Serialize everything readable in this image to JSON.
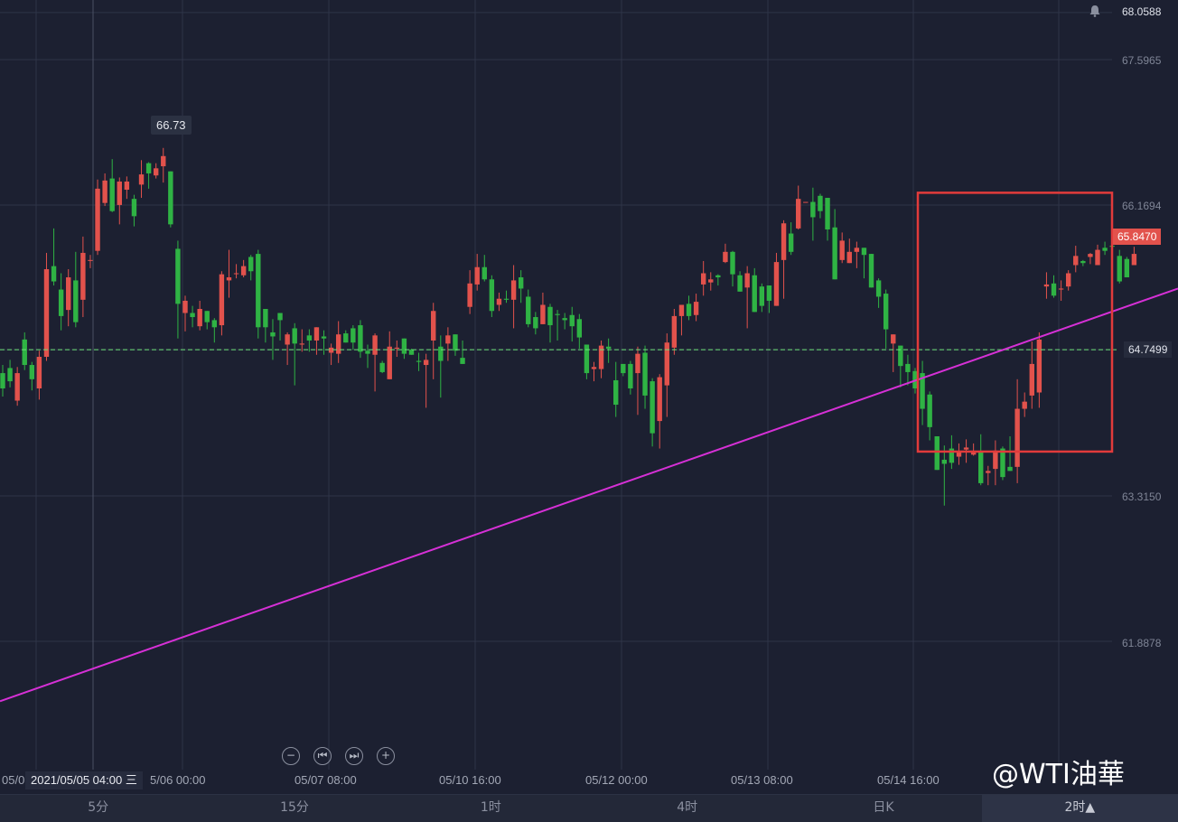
{
  "chart_data": {
    "type": "candlestick",
    "symbol_context": "WTI crude oil",
    "y_ticks": [
      "68.0588",
      "67.5965",
      "66.1694",
      "64.7499",
      "63.3150",
      "61.8878"
    ],
    "current_price": "65.8470",
    "reference_line_price": "64.7499",
    "reference_line_price_value": 64.7499,
    "peak_label": "66.73",
    "peak_value": 66.73,
    "x_tick_labels": [
      "05/0",
      "5/06 00:00",
      "05/07 08:00",
      "05/10 16:00",
      "05/12 00:00",
      "05/13 08:00",
      "05/14 16:00"
    ],
    "crosshair_time": "2021/05/05 04:00 三",
    "trendline": {
      "from": 61.3,
      "to": 65.35
    },
    "highlight_box": {
      "price_top": 66.29,
      "price_bottom": 63.75
    },
    "candles": [
      [
        64.52,
        64.37,
        64.6,
        64.29
      ],
      [
        64.57,
        64.44,
        64.65,
        64.38
      ],
      [
        64.25,
        64.52,
        64.58,
        64.2
      ],
      [
        64.85,
        64.6,
        64.92,
        64.55
      ],
      [
        64.6,
        64.46,
        64.63,
        64.35
      ],
      [
        64.37,
        64.68,
        64.74,
        64.26
      ],
      [
        64.68,
        65.54,
        65.7,
        64.64
      ],
      [
        65.57,
        65.42,
        65.94,
        65.38
      ],
      [
        65.34,
        65.08,
        65.5,
        64.94
      ],
      [
        65.14,
        65.46,
        65.54,
        64.98
      ],
      [
        65.43,
        65.02,
        65.71,
        64.97
      ],
      [
        65.24,
        65.7,
        65.86,
        65.07
      ],
      [
        65.63,
        65.63,
        65.68,
        65.55
      ],
      [
        65.72,
        66.33,
        66.42,
        65.68
      ],
      [
        66.19,
        66.41,
        66.48,
        66.16
      ],
      [
        66.43,
        66.11,
        66.62,
        66.1
      ],
      [
        66.17,
        66.4,
        66.44,
        65.98
      ],
      [
        66.32,
        66.4,
        66.45,
        66.23
      ],
      [
        66.23,
        66.06,
        66.27,
        65.96
      ],
      [
        66.37,
        66.47,
        66.61,
        66.24
      ],
      [
        66.58,
        66.48,
        66.59,
        66.33
      ],
      [
        66.46,
        66.53,
        66.58,
        66.43
      ],
      [
        66.55,
        66.65,
        66.73,
        66.39
      ],
      [
        66.5,
        65.98,
        66.46,
        65.95
      ],
      [
        65.74,
        65.2,
        65.82,
        64.86
      ],
      [
        65.11,
        65.23,
        65.28,
        64.93
      ],
      [
        65.11,
        65.07,
        65.18,
        64.97
      ],
      [
        64.98,
        65.15,
        65.23,
        64.94
      ],
      [
        65.13,
        65.02,
        65.12,
        64.95
      ],
      [
        65.04,
        64.97,
        65.06,
        64.82
      ],
      [
        64.99,
        65.49,
        65.52,
        64.89
      ],
      [
        65.43,
        65.46,
        65.73,
        65.26
      ],
      [
        65.5,
        65.5,
        65.59,
        65.45
      ],
      [
        65.48,
        65.57,
        65.63,
        65.46
      ],
      [
        65.66,
        65.52,
        65.68,
        65.43
      ],
      [
        65.69,
        64.97,
        65.73,
        64.86
      ],
      [
        65.15,
        64.97,
        64.99,
        64.82
      ],
      [
        64.92,
        64.88,
        65.05,
        64.65
      ],
      [
        65.11,
        65.04,
        64.97,
        64.84
      ],
      [
        64.8,
        64.9,
        64.92,
        64.6
      ],
      [
        64.96,
        64.81,
        65.01,
        64.4
      ],
      [
        64.8,
        64.81,
        64.95,
        64.73
      ],
      [
        64.89,
        64.84,
        64.95,
        64.73
      ],
      [
        64.84,
        64.97,
        64.85,
        64.7
      ],
      [
        64.88,
        64.86,
        64.94,
        64.7
      ],
      [
        64.72,
        64.77,
        64.81,
        64.6
      ],
      [
        64.71,
        64.9,
        65.03,
        64.62
      ],
      [
        64.91,
        64.82,
        64.94,
        64.84
      ],
      [
        64.96,
        64.82,
        64.99,
        64.75
      ],
      [
        64.99,
        64.73,
        65.04,
        64.67
      ],
      [
        64.74,
        64.71,
        64.8,
        64.57
      ],
      [
        64.7,
        64.89,
        64.91,
        64.34
      ],
      [
        64.62,
        64.53,
        64.64,
        64.52
      ],
      [
        64.46,
        64.78,
        64.93,
        64.52
      ],
      [
        64.76,
        64.77,
        64.84,
        64.68
      ],
      [
        64.86,
        64.71,
        64.84,
        64.66
      ],
      [
        64.75,
        64.7,
        64.76,
        64.7
      ],
      [
        64.64,
        64.63,
        64.72,
        64.54
      ],
      [
        64.6,
        64.65,
        64.71,
        64.18
      ],
      [
        64.84,
        65.13,
        65.21,
        64.46
      ],
      [
        64.78,
        64.64,
        64.89,
        64.28
      ],
      [
        64.81,
        64.89,
        64.97,
        64.64
      ],
      [
        64.9,
        64.74,
        64.83,
        64.69
      ],
      [
        64.67,
        64.61,
        64.84,
        64.65
      ],
      [
        65.17,
        65.4,
        65.53,
        65.1
      ],
      [
        65.39,
        65.56,
        65.69,
        65.33
      ],
      [
        65.56,
        65.44,
        65.68,
        65.42
      ],
      [
        65.44,
        65.13,
        65.48,
        65.07
      ],
      [
        65.19,
        65.25,
        65.31,
        65.13
      ],
      [
        65.25,
        65.24,
        65.33,
        65.21
      ],
      [
        65.24,
        65.43,
        65.58,
        64.96
      ],
      [
        65.46,
        65.35,
        65.53,
        65.21
      ],
      [
        65.27,
        65.0,
        65.34,
        64.97
      ],
      [
        65.07,
        64.96,
        65.12,
        64.9
      ],
      [
        65.0,
        65.19,
        65.31,
        65.01
      ],
      [
        65.17,
        64.99,
        65.2,
        64.82
      ],
      [
        65.1,
        65.09,
        65.14,
        64.84
      ],
      [
        65.06,
        65.04,
        65.11,
        64.95
      ],
      [
        65.09,
        64.98,
        65.17,
        64.83
      ],
      [
        65.05,
        64.87,
        65.1,
        64.76
      ],
      [
        64.8,
        64.52,
        64.8,
        64.46
      ],
      [
        64.56,
        64.58,
        64.63,
        64.44
      ],
      [
        64.56,
        64.79,
        64.84,
        64.47
      ],
      [
        64.78,
        64.76,
        64.86,
        64.62
      ],
      [
        64.45,
        64.21,
        64.63,
        64.09
      ],
      [
        64.61,
        64.52,
        64.61,
        64.49
      ],
      [
        64.61,
        64.37,
        64.64,
        64.31
      ],
      [
        64.52,
        64.71,
        64.78,
        64.11
      ],
      [
        64.72,
        64.3,
        64.79,
        64.17
      ],
      [
        64.44,
        63.93,
        64.47,
        63.8
      ],
      [
        64.05,
        64.48,
        64.51,
        63.78
      ],
      [
        64.4,
        64.82,
        64.91,
        64.09
      ],
      [
        64.77,
        65.08,
        65.15,
        64.7
      ],
      [
        65.08,
        65.19,
        65.17,
        64.89
      ],
      [
        65.2,
        65.08,
        65.28,
        65.04
      ],
      [
        65.09,
        65.22,
        65.3,
        65.03
      ],
      [
        65.39,
        65.5,
        65.62,
        65.28
      ],
      [
        65.41,
        65.44,
        65.51,
        65.33
      ],
      [
        65.48,
        65.46,
        65.49,
        65.38
      ],
      [
        65.61,
        65.71,
        65.79,
        65.6
      ],
      [
        65.71,
        65.49,
        65.72,
        65.37
      ],
      [
        65.48,
        65.32,
        65.52,
        65.33
      ],
      [
        65.36,
        65.5,
        65.57,
        64.96
      ],
      [
        65.48,
        65.12,
        65.55,
        65.12
      ],
      [
        65.37,
        65.18,
        65.4,
        65.12
      ],
      [
        65.38,
        65.23,
        65.38,
        65.11
      ],
      [
        65.18,
        65.61,
        65.7,
        65.18
      ],
      [
        65.63,
        65.99,
        66.02,
        65.25
      ],
      [
        65.89,
        65.71,
        66.0,
        65.68
      ],
      [
        65.94,
        66.23,
        66.36,
        65.93
      ],
      [
        66.2,
        66.2,
        66.2,
        66.2
      ],
      [
        66.2,
        66.05,
        66.34,
        65.82
      ],
      [
        66.26,
        66.11,
        66.28,
        66.04
      ],
      [
        66.24,
        65.93,
        66.22,
        65.82
      ],
      [
        65.95,
        65.44,
        66.13,
        65.68
      ],
      [
        65.63,
        65.82,
        65.9,
        65.6
      ],
      [
        65.6,
        65.71,
        65.84,
        65.6
      ],
      [
        65.71,
        65.75,
        65.81,
        65.55
      ],
      [
        65.75,
        65.68,
        65.71,
        65.45
      ],
      [
        65.69,
        65.36,
        65.68,
        65.43
      ],
      [
        65.43,
        65.27,
        65.45,
        65.16
      ],
      [
        65.3,
        64.95,
        65.34,
        64.76
      ],
      [
        64.81,
        64.9,
        64.85,
        64.53
      ],
      [
        64.79,
        64.59,
        64.63,
        64.38
      ],
      [
        64.61,
        64.53,
        64.7,
        64.4
      ],
      [
        64.54,
        64.37,
        64.57,
        64.32
      ],
      [
        64.52,
        64.17,
        64.64,
        64.01
      ],
      [
        64.31,
        63.99,
        64.34,
        63.86
      ],
      [
        63.9,
        63.57,
        63.9,
        63.6
      ],
      [
        63.67,
        63.63,
        63.81,
        63.22
      ],
      [
        63.78,
        63.64,
        63.91,
        63.58
      ],
      [
        63.7,
        63.75,
        63.83,
        63.62
      ],
      [
        63.77,
        63.79,
        63.87,
        63.64
      ],
      [
        63.72,
        63.74,
        63.83,
        63.71
      ],
      [
        63.75,
        63.44,
        63.92,
        63.42
      ],
      [
        63.54,
        63.56,
        63.61,
        63.42
      ],
      [
        63.58,
        63.76,
        63.86,
        63.42
      ],
      [
        63.78,
        63.5,
        63.8,
        63.47
      ],
      [
        63.6,
        63.56,
        63.9,
        63.56
      ],
      [
        63.6,
        64.17,
        64.46,
        63.44
      ],
      [
        64.17,
        64.24,
        64.33,
        64.09
      ],
      [
        64.3,
        64.61,
        64.83,
        64.17
      ],
      [
        64.33,
        64.85,
        64.92,
        64.18
      ],
      [
        65.37,
        65.39,
        65.51,
        65.25
      ],
      [
        65.4,
        65.28,
        65.48,
        65.26
      ],
      [
        65.34,
        65.35,
        65.43,
        65.23
      ],
      [
        65.37,
        65.5,
        65.53,
        65.33
      ],
      [
        65.58,
        65.67,
        65.77,
        65.51
      ],
      [
        65.62,
        65.6,
        65.63,
        65.57
      ],
      [
        65.66,
        65.69,
        65.7,
        65.59
      ],
      [
        65.58,
        65.73,
        65.78,
        65.72
      ],
      [
        65.75,
        65.72,
        65.81,
        65.68
      ],
      [
        65.77,
        65.76,
        65.88,
        65.68
      ],
      [
        65.67,
        65.42,
        65.73,
        65.4
      ],
      [
        65.64,
        65.46,
        65.66,
        65.47
      ],
      [
        65.58,
        65.69,
        65.76,
        65.59
      ]
    ]
  },
  "timeframes": [
    "5分",
    "15分",
    "1时",
    "4时",
    "日K",
    "2时▲"
  ],
  "active_timeframe_index": 5,
  "watermark": "@WTI油華",
  "colors": {
    "background": "#1c2031",
    "up": "#e2524c",
    "down": "#2fb344",
    "trendline": "#d630d6",
    "reference_line": "#6ee27a",
    "highlight": "#e23b3b",
    "grid": "#2e3447"
  }
}
